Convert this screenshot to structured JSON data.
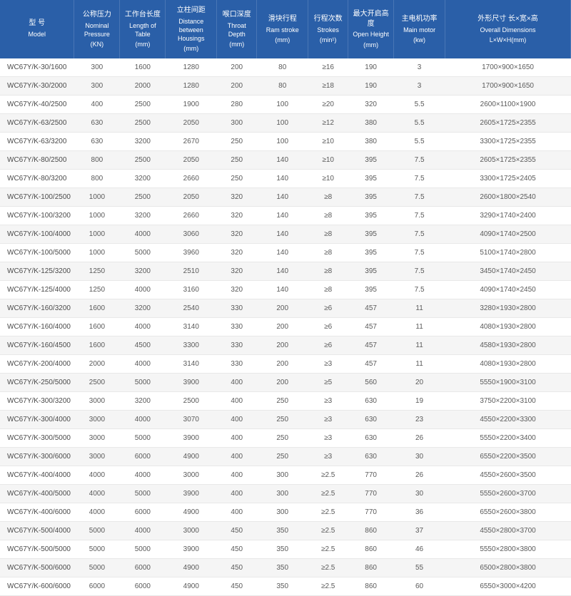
{
  "table": {
    "type": "table",
    "header_bg": "#2a5fa8",
    "header_fg": "#ffffff",
    "row_even_bg": "#f5f5f5",
    "row_odd_bg": "#ffffff",
    "cell_fg": "#5a5a5a",
    "border_color": "#e8e8e8",
    "font_size_body": 10,
    "font_size_header": 10,
    "columns": [
      {
        "zh": "型 号",
        "en": "Model",
        "unit": ""
      },
      {
        "zh": "公称压力",
        "en": "Nominal Pressure",
        "unit": "(KN)"
      },
      {
        "zh": "工作台长度",
        "en": "Length of Table",
        "unit": "(mm)"
      },
      {
        "zh": "立柱间距",
        "en": "Distance between Housings",
        "unit": "(mm)"
      },
      {
        "zh": "喉口深度",
        "en": "Throat Depth",
        "unit": "(mm)"
      },
      {
        "zh": "滑块行程",
        "en": "Ram stroke",
        "unit": "(mm)"
      },
      {
        "zh": "行程次数",
        "en": "Strokes",
        "unit": "(min¹)"
      },
      {
        "zh": "最大开启高度",
        "en": "Open Height",
        "unit": "(mm)"
      },
      {
        "zh": "主电机功率",
        "en": "Main motor",
        "unit": "(kw)"
      },
      {
        "zh": "外形尺寸 长×宽×高",
        "en": "Overall Dimensions",
        "unit": "L×W×H(mm)"
      }
    ],
    "rows": [
      [
        "WC67Y/K-30/1600",
        "300",
        "1600",
        "1280",
        "200",
        "80",
        "≥16",
        "190",
        "3",
        "1700×900×1650"
      ],
      [
        "WC67Y/K-30/2000",
        "300",
        "2000",
        "1280",
        "200",
        "80",
        "≥18",
        "190",
        "3",
        "1700×900×1650"
      ],
      [
        "WC67Y/K-40/2500",
        "400",
        "2500",
        "1900",
        "280",
        "100",
        "≥20",
        "320",
        "5.5",
        "2600×1100×1900"
      ],
      [
        "WC67Y/K-63/2500",
        "630",
        "2500",
        "2050",
        "300",
        "100",
        "≥12",
        "380",
        "5.5",
        "2605×1725×2355"
      ],
      [
        "WC67Y/K-63/3200",
        "630",
        "3200",
        "2670",
        "250",
        "100",
        "≥10",
        "380",
        "5.5",
        "3300×1725×2355"
      ],
      [
        "WC67Y/K-80/2500",
        "800",
        "2500",
        "2050",
        "250",
        "140",
        "≥10",
        "395",
        "7.5",
        "2605×1725×2355"
      ],
      [
        "WC67Y/K-80/3200",
        "800",
        "3200",
        "2660",
        "250",
        "140",
        "≥10",
        "395",
        "7.5",
        "3300×1725×2405"
      ],
      [
        "WC67Y/K-100/2500",
        "1000",
        "2500",
        "2050",
        "320",
        "140",
        "≥8",
        "395",
        "7.5",
        "2600×1800×2540"
      ],
      [
        "WC67Y/K-100/3200",
        "1000",
        "3200",
        "2660",
        "320",
        "140",
        "≥8",
        "395",
        "7.5",
        "3290×1740×2400"
      ],
      [
        "WC67Y/K-100/4000",
        "1000",
        "4000",
        "3060",
        "320",
        "140",
        "≥8",
        "395",
        "7.5",
        "4090×1740×2500"
      ],
      [
        "WC67Y/K-100/5000",
        "1000",
        "5000",
        "3960",
        "320",
        "140",
        "≥8",
        "395",
        "7.5",
        "5100×1740×2800"
      ],
      [
        "WC67Y/K-125/3200",
        "1250",
        "3200",
        "2510",
        "320",
        "140",
        "≥8",
        "395",
        "7.5",
        "3450×1740×2450"
      ],
      [
        "WC67Y/K-125/4000",
        "1250",
        "4000",
        "3160",
        "320",
        "140",
        "≥8",
        "395",
        "7.5",
        "4090×1740×2450"
      ],
      [
        "WC67Y/K-160/3200",
        "1600",
        "3200",
        "2540",
        "330",
        "200",
        "≥6",
        "457",
        "11",
        "3280×1930×2800"
      ],
      [
        "WC67Y/K-160/4000",
        "1600",
        "4000",
        "3140",
        "330",
        "200",
        "≥6",
        "457",
        "11",
        "4080×1930×2800"
      ],
      [
        "WC67Y/K-160/4500",
        "1600",
        "4500",
        "3300",
        "330",
        "200",
        "≥6",
        "457",
        "11",
        "4580×1930×2800"
      ],
      [
        "WC67Y/K-200/4000",
        "2000",
        "4000",
        "3140",
        "330",
        "200",
        "≥3",
        "457",
        "11",
        "4080×1930×2800"
      ],
      [
        "WC67Y/K-250/5000",
        "2500",
        "5000",
        "3900",
        "400",
        "200",
        "≥5",
        "560",
        "20",
        "5550×1900×3100"
      ],
      [
        "WC67Y/K-300/3200",
        "3000",
        "3200",
        "2500",
        "400",
        "250",
        "≥3",
        "630",
        "19",
        "3750×2200×3100"
      ],
      [
        "WC67Y/K-300/4000",
        "3000",
        "4000",
        "3070",
        "400",
        "250",
        "≥3",
        "630",
        "23",
        "4550×2200×3300"
      ],
      [
        "WC67Y/K-300/5000",
        "3000",
        "5000",
        "3900",
        "400",
        "250",
        "≥3",
        "630",
        "26",
        "5550×2200×3400"
      ],
      [
        "WC67Y/K-300/6000",
        "3000",
        "6000",
        "4900",
        "400",
        "250",
        "≥3",
        "630",
        "30",
        "6550×2200×3500"
      ],
      [
        "WC67Y/K-400/4000",
        "4000",
        "4000",
        "3000",
        "400",
        "300",
        "≥2.5",
        "770",
        "26",
        "4550×2600×3500"
      ],
      [
        "WC67Y/K-400/5000",
        "4000",
        "5000",
        "3900",
        "400",
        "300",
        "≥2.5",
        "770",
        "30",
        "5550×2600×3700"
      ],
      [
        "WC67Y/K-400/6000",
        "4000",
        "6000",
        "4900",
        "400",
        "300",
        "≥2.5",
        "770",
        "36",
        "6550×2600×3800"
      ],
      [
        "WC67Y/K-500/4000",
        "5000",
        "4000",
        "3000",
        "450",
        "350",
        "≥2.5",
        "860",
        "37",
        "4550×2800×3700"
      ],
      [
        "WC67Y/K-500/5000",
        "5000",
        "5000",
        "3900",
        "450",
        "350",
        "≥2.5",
        "860",
        "46",
        "5550×2800×3800"
      ],
      [
        "WC67Y/K-500/6000",
        "5000",
        "6000",
        "4900",
        "450",
        "350",
        "≥2.5",
        "860",
        "55",
        "6500×2800×3800"
      ],
      [
        "WC67Y/K-600/6000",
        "6000",
        "6000",
        "4900",
        "450",
        "350",
        "≥2.5",
        "860",
        "60",
        "6550×3000×4200"
      ]
    ]
  }
}
